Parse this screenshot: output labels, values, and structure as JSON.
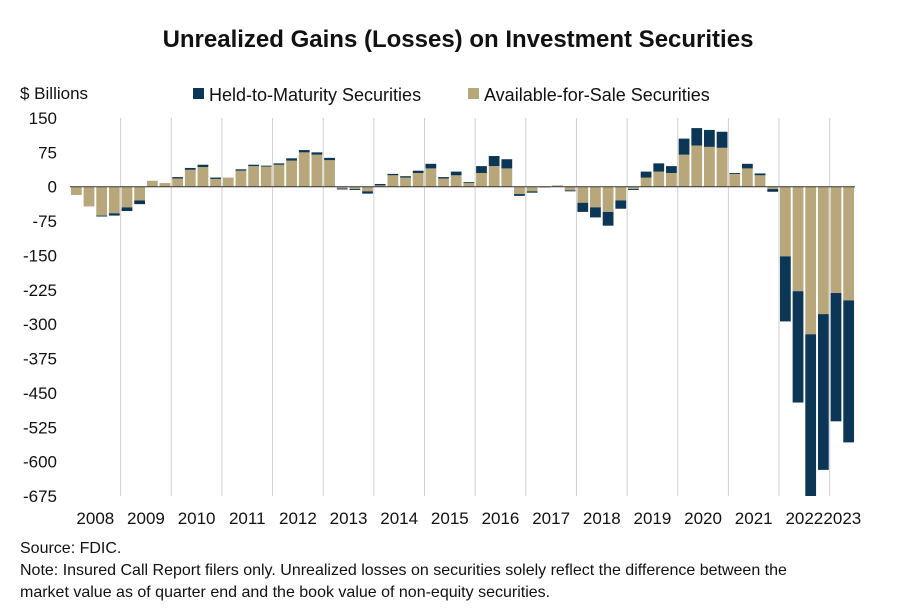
{
  "chart_data": {
    "type": "bar",
    "stacked": true,
    "title": "Unrealized Gains (Losses) on Investment Securities",
    "ylabel": "$ Billions",
    "xlabel": "",
    "ylim": [
      -675,
      150
    ],
    "yticks": [
      150,
      75,
      0,
      -75,
      -150,
      -225,
      -300,
      -375,
      -450,
      -525,
      -600,
      -675
    ],
    "ytick_labels": [
      "150",
      "75",
      "0",
      "-75",
      "-150",
      "-225",
      "-300",
      "-375",
      "-450",
      "-525",
      "-600",
      "-675"
    ],
    "xtick_labels": [
      "2008",
      "2009",
      "2010",
      "2011",
      "2012",
      "2013",
      "2014",
      "2015",
      "2016",
      "2017",
      "2018",
      "2019",
      "2020",
      "2021",
      "2022",
      "2023"
    ],
    "grid": "vertical lines at year boundaries",
    "legend": "top-center",
    "colors": {
      "Held-to-Maturity Securities": "#0b3655",
      "Available-for-Sale Securities": "#b8a77a",
      "grid": "#d0d0d0",
      "axis": "#333333"
    },
    "categories": [
      "2008Q1",
      "2008Q2",
      "2008Q3",
      "2008Q4",
      "2009Q1",
      "2009Q2",
      "2009Q3",
      "2009Q4",
      "2010Q1",
      "2010Q2",
      "2010Q3",
      "2010Q4",
      "2011Q1",
      "2011Q2",
      "2011Q3",
      "2011Q4",
      "2012Q1",
      "2012Q2",
      "2012Q3",
      "2012Q4",
      "2013Q1",
      "2013Q2",
      "2013Q3",
      "2013Q4",
      "2014Q1",
      "2014Q2",
      "2014Q3",
      "2014Q4",
      "2015Q1",
      "2015Q2",
      "2015Q3",
      "2015Q4",
      "2016Q1",
      "2016Q2",
      "2016Q3",
      "2016Q4",
      "2017Q1",
      "2017Q2",
      "2017Q3",
      "2017Q4",
      "2018Q1",
      "2018Q2",
      "2018Q3",
      "2018Q4",
      "2019Q1",
      "2019Q2",
      "2019Q3",
      "2019Q4",
      "2020Q1",
      "2020Q2",
      "2020Q3",
      "2020Q4",
      "2021Q1",
      "2021Q2",
      "2021Q3",
      "2021Q4",
      "2022Q1",
      "2022Q2",
      "2022Q3",
      "2022Q4",
      "2023Q1",
      "2023Q2"
    ],
    "series": [
      {
        "name": "Available-for-Sale Securities",
        "values": [
          -18,
          -43,
          -63,
          -58,
          -45,
          -30,
          13,
          8,
          18,
          37,
          43,
          17,
          20,
          35,
          45,
          44,
          48,
          57,
          75,
          70,
          58,
          -4,
          -5,
          -10,
          3,
          25,
          20,
          30,
          40,
          18,
          25,
          8,
          30,
          45,
          40,
          -16,
          -10,
          -2,
          3,
          -8,
          -35,
          -45,
          -55,
          -30,
          -5,
          20,
          33,
          30,
          70,
          90,
          87,
          85,
          28,
          40,
          25,
          -5,
          -152,
          -228,
          -322,
          -278,
          -232,
          -248
        ]
      },
      {
        "name": "Held-to-Maturity Securities",
        "values": [
          0,
          0,
          -2,
          -5,
          -8,
          -8,
          0,
          0,
          3,
          4,
          5,
          3,
          0,
          3,
          3,
          2,
          3,
          5,
          5,
          5,
          5,
          -2,
          -2,
          -5,
          3,
          3,
          3,
          5,
          10,
          3,
          8,
          2,
          15,
          22,
          20,
          -4,
          -3,
          0,
          0,
          -2,
          -20,
          -22,
          -30,
          -18,
          -2,
          13,
          18,
          15,
          35,
          38,
          37,
          35,
          2,
          10,
          4,
          -6,
          -142,
          -243,
          -353,
          -340,
          -280,
          -310
        ]
      }
    ]
  },
  "chart_meta": {
    "legend_hold": "Held-to-Maturity Securities",
    "legend_afs": "Available-for-Sale Securities"
  },
  "notes": {
    "source": "Source: FDIC.",
    "note_line1": "Note: Insured Call Report filers only. Unrealized losses on securities solely reflect the difference between the",
    "note_line2": "market value as of quarter end and the book value of non-equity securities."
  }
}
